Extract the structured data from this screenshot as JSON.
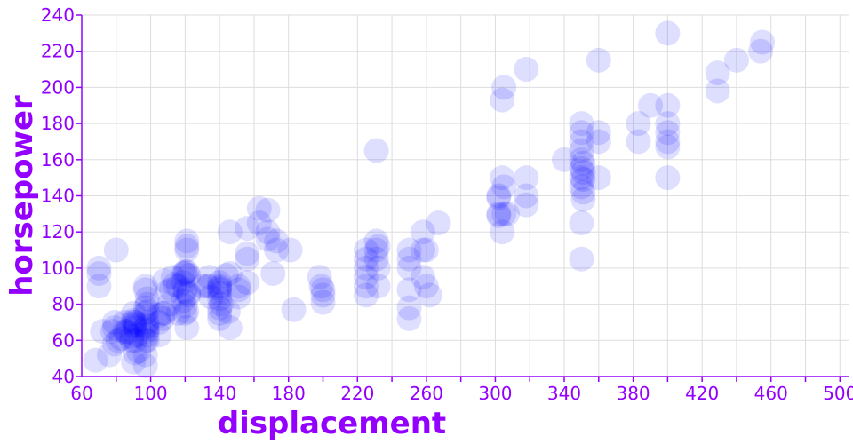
{
  "colors": {
    "accent": "#9400ff",
    "point": "#0000ff",
    "grid": "#dddddd"
  },
  "chart_data": {
    "type": "scatter",
    "title": "",
    "xlabel": "displacement",
    "ylabel": "horsepower",
    "xlim": [
      60,
      505
    ],
    "ylim": [
      40,
      240
    ],
    "xticks": [
      60,
      100,
      140,
      180,
      220,
      260,
      300,
      340,
      380,
      420,
      460,
      500
    ],
    "yticks": [
      40,
      60,
      80,
      100,
      120,
      140,
      160,
      180,
      200,
      220,
      240
    ],
    "grid": true,
    "legend": "none",
    "point_opacity": 0.13,
    "series": [
      {
        "points": [
          [
            68,
            49
          ],
          [
            70,
            90
          ],
          [
            70,
            97
          ],
          [
            70,
            100
          ],
          [
            72,
            65
          ],
          [
            76,
            52
          ],
          [
            78,
            65
          ],
          [
            79,
            58
          ],
          [
            79,
            67
          ],
          [
            79,
            70
          ],
          [
            80,
            110
          ],
          [
            81,
            60
          ],
          [
            83,
            61
          ],
          [
            85,
            65
          ],
          [
            85,
            70
          ],
          [
            86,
            64
          ],
          [
            86,
            65
          ],
          [
            89,
            60
          ],
          [
            89,
            62
          ],
          [
            90,
            48
          ],
          [
            90,
            70
          ],
          [
            90,
            71
          ],
          [
            90,
            75
          ],
          [
            91,
            53
          ],
          [
            91,
            60
          ],
          [
            91,
            67
          ],
          [
            91,
            68
          ],
          [
            91,
            69
          ],
          [
            91,
            70
          ],
          [
            92,
            63
          ],
          [
            93,
            54
          ],
          [
            97,
            46
          ],
          [
            97,
            52
          ],
          [
            97,
            60
          ],
          [
            97,
            67
          ],
          [
            97,
            75
          ],
          [
            97,
            78
          ],
          [
            97,
            88
          ],
          [
            97,
            90
          ],
          [
            98,
            60
          ],
          [
            98,
            63
          ],
          [
            98,
            65
          ],
          [
            98,
            66
          ],
          [
            98,
            68
          ],
          [
            98,
            70
          ],
          [
            98,
            76
          ],
          [
            98,
            80
          ],
          [
            98,
            83
          ],
          [
            105,
            63
          ],
          [
            105,
            70
          ],
          [
            105,
            74
          ],
          [
            107,
            72
          ],
          [
            107,
            75
          ],
          [
            108,
            75
          ],
          [
            108,
            93
          ],
          [
            110,
            87
          ],
          [
            111,
            80
          ],
          [
            112,
            88
          ],
          [
            113,
            95
          ],
          [
            114,
            91
          ],
          [
            116,
            75
          ],
          [
            116,
            90
          ],
          [
            119,
            82
          ],
          [
            119,
            92
          ],
          [
            119,
            97
          ],
          [
            120,
            75
          ],
          [
            120,
            79
          ],
          [
            120,
            87
          ],
          [
            120,
            88
          ],
          [
            120,
            97
          ],
          [
            120,
            98
          ],
          [
            121,
            67
          ],
          [
            121,
            76
          ],
          [
            121,
            98
          ],
          [
            121,
            110
          ],
          [
            121,
            112
          ],
          [
            121,
            115
          ],
          [
            122,
            85
          ],
          [
            122,
            86
          ],
          [
            122,
            96
          ],
          [
            130,
            90
          ],
          [
            133,
            90
          ],
          [
            134,
            90
          ],
          [
            134,
            95
          ],
          [
            135,
            84
          ],
          [
            140,
            72
          ],
          [
            140,
            75
          ],
          [
            140,
            78
          ],
          [
            140,
            83
          ],
          [
            140,
            86
          ],
          [
            140,
            88
          ],
          [
            140,
            89
          ],
          [
            140,
            90
          ],
          [
            140,
            92
          ],
          [
            141,
            80
          ],
          [
            144,
            96
          ],
          [
            145,
            76
          ],
          [
            146,
            67
          ],
          [
            146,
            97
          ],
          [
            146,
            120
          ],
          [
            151,
            84
          ],
          [
            151,
            88
          ],
          [
            151,
            90
          ],
          [
            156,
            92
          ],
          [
            156,
            105
          ],
          [
            156,
            108
          ],
          [
            156,
            122
          ],
          [
            163,
            125
          ],
          [
            163,
            133
          ],
          [
            168,
            116
          ],
          [
            168,
            120
          ],
          [
            168,
            132
          ],
          [
            171,
            97
          ],
          [
            173,
            110
          ],
          [
            173,
            115
          ],
          [
            181,
            110
          ],
          [
            183,
            77
          ],
          [
            198,
            95
          ],
          [
            199,
            90
          ],
          [
            200,
            81
          ],
          [
            200,
            85
          ],
          [
            200,
            88
          ],
          [
            225,
            85
          ],
          [
            225,
            90
          ],
          [
            225,
            95
          ],
          [
            225,
            100
          ],
          [
            225,
            105
          ],
          [
            225,
            110
          ],
          [
            231,
            105
          ],
          [
            231,
            110
          ],
          [
            231,
            115
          ],
          [
            231,
            165
          ],
          [
            232,
            90
          ],
          [
            232,
            100
          ],
          [
            232,
            112
          ],
          [
            250,
            72
          ],
          [
            250,
            78
          ],
          [
            250,
            88
          ],
          [
            250,
            100
          ],
          [
            250,
            105
          ],
          [
            250,
            110
          ],
          [
            258,
            95
          ],
          [
            258,
            110
          ],
          [
            258,
            120
          ],
          [
            260,
            90
          ],
          [
            260,
            110
          ],
          [
            262,
            85
          ],
          [
            267,
            125
          ],
          [
            302,
            129
          ],
          [
            302,
            130
          ],
          [
            302,
            139
          ],
          [
            302,
            140
          ],
          [
            304,
            120
          ],
          [
            304,
            150
          ],
          [
            304,
            193
          ],
          [
            305,
            130
          ],
          [
            305,
            145
          ],
          [
            305,
            200
          ],
          [
            307,
            130
          ],
          [
            318,
            135
          ],
          [
            318,
            140
          ],
          [
            318,
            150
          ],
          [
            318,
            210
          ],
          [
            340,
            160
          ],
          [
            350,
            105
          ],
          [
            350,
            125
          ],
          [
            350,
            145
          ],
          [
            350,
            150
          ],
          [
            350,
            155
          ],
          [
            350,
            160
          ],
          [
            350,
            165
          ],
          [
            350,
            170
          ],
          [
            350,
            175
          ],
          [
            350,
            180
          ],
          [
            351,
            138
          ],
          [
            351,
            142
          ],
          [
            351,
            149
          ],
          [
            351,
            153
          ],
          [
            351,
            158
          ],
          [
            360,
            150
          ],
          [
            360,
            170
          ],
          [
            360,
            175
          ],
          [
            360,
            215
          ],
          [
            383,
            170
          ],
          [
            383,
            180
          ],
          [
            390,
            190
          ],
          [
            400,
            150
          ],
          [
            400,
            167
          ],
          [
            400,
            170
          ],
          [
            400,
            175
          ],
          [
            400,
            180
          ],
          [
            400,
            190
          ],
          [
            400,
            230
          ],
          [
            429,
            198
          ],
          [
            429,
            208
          ],
          [
            440,
            215
          ],
          [
            454,
            220
          ],
          [
            455,
            225
          ]
        ]
      }
    ]
  }
}
